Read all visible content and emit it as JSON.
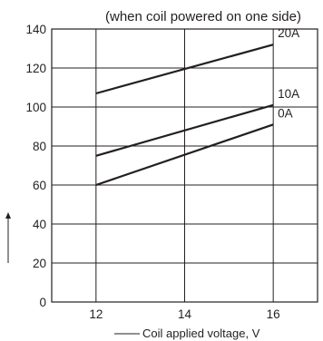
{
  "chart_data": {
    "type": "line",
    "title": "(when coil powered on one side)",
    "xlabel": "Coil applied voltage, V",
    "ylabel": "",
    "xlim": [
      11,
      17
    ],
    "ylim": [
      0,
      140
    ],
    "xticks": [
      12,
      14,
      16
    ],
    "yticks": [
      0,
      20,
      40,
      60,
      80,
      100,
      120,
      140
    ],
    "grid": true,
    "series": [
      {
        "name": "20A",
        "x": [
          12,
          16
        ],
        "y": [
          107,
          132
        ]
      },
      {
        "name": "10A",
        "x": [
          12,
          16
        ],
        "y": [
          75,
          101
        ]
      },
      {
        "name": "0A",
        "x": [
          12,
          16
        ],
        "y": [
          60,
          91
        ]
      }
    ]
  }
}
